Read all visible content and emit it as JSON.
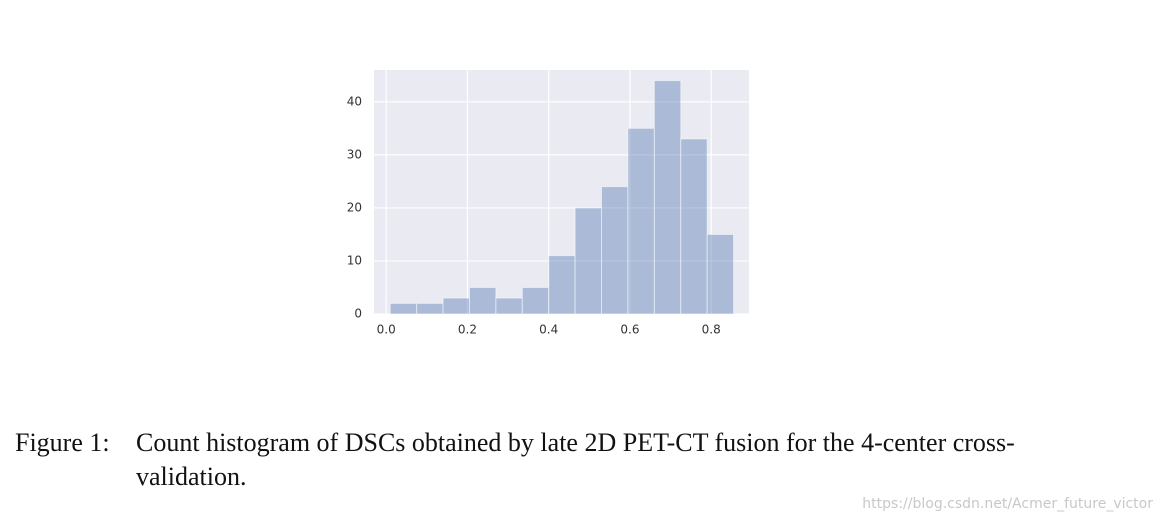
{
  "chart_data": {
    "type": "histogram",
    "bins": [
      0.01,
      0.075,
      0.14,
      0.205,
      0.27,
      0.335,
      0.4,
      0.465,
      0.53,
      0.595,
      0.66,
      0.725,
      0.79,
      0.855
    ],
    "values": [
      2,
      2,
      3,
      5,
      3,
      5,
      11,
      20,
      24,
      35,
      44,
      33,
      15
    ],
    "color": "#4c72b0",
    "alpha": 0.4,
    "xlim": [
      -0.03,
      0.893
    ],
    "ylim": [
      0,
      46
    ],
    "xticks": [
      {
        "value": 0,
        "label": "0.0"
      },
      0.2,
      0.4,
      0.6,
      0.8
    ],
    "yticks": [
      0,
      10,
      20,
      30,
      40
    ],
    "grid": true
  },
  "caption": {
    "label": "Figure 1:",
    "text": "Count histogram of DSCs obtained by late 2D PET-CT fusion for the 4-center cross-validation."
  },
  "watermark": "https://blog.csdn.net/Acmer_future_victor"
}
